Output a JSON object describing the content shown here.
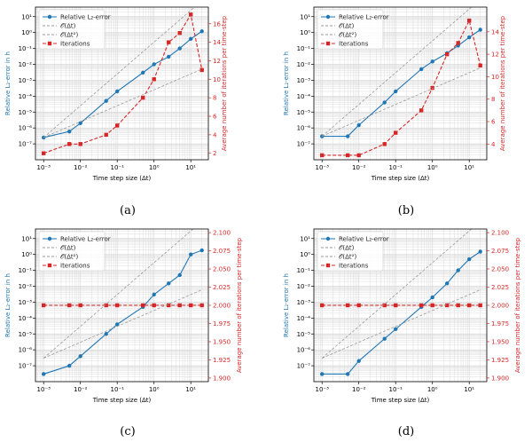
{
  "figure": {
    "panels": [
      "a",
      "b",
      "c",
      "d"
    ],
    "captions": [
      "(a)",
      "(b)",
      "(c)",
      "(d)"
    ]
  },
  "colors": {
    "error": "#1f77b4",
    "iterations": "#d62728",
    "ref": "#9a9a9a",
    "grid": "#d8d8d8"
  },
  "chart_data": [
    {
      "type": "line",
      "xlabel": "Time step size (Δt)",
      "ylabel": "Relative L₂-error in h",
      "y2label": "Average number of iterations per time-step",
      "xscale": "log",
      "yscale": "log",
      "xlim": [
        0.0006,
        30
      ],
      "ylim_exp": [
        -8,
        1.6
      ],
      "xticks": [
        "10⁻³",
        "10⁻²",
        "10⁻¹",
        "10⁰",
        "10¹"
      ],
      "yticks": [
        "10⁻⁷",
        "10⁻⁶",
        "10⁻⁵",
        "10⁻⁴",
        "10⁻³",
        "10⁻²",
        "10⁻¹",
        "10⁰",
        "10¹"
      ],
      "y2lim": [
        1.3,
        17.8
      ],
      "y2ticks": [
        "2",
        "4",
        "6",
        "8",
        "10",
        "12",
        "14",
        "16"
      ],
      "legend": [
        "Relative L₂-error",
        "𝒪(Δt)",
        "𝒪(Δt²)",
        "Iterations"
      ],
      "legend_position": "top-left",
      "grid": true,
      "x": [
        0.001,
        0.005,
        0.01,
        0.05,
        0.1,
        0.5,
        1,
        2.5,
        5,
        10,
        20
      ],
      "series": [
        {
          "name": "Relative L₂-error",
          "axis": "left",
          "values": [
            2.5e-07,
            6e-07,
            2e-06,
            5e-05,
            0.0002,
            0.003,
            0.01,
            0.03,
            0.1,
            0.4,
            1.2
          ]
        },
        {
          "name": "Iterations",
          "axis": "right",
          "values": [
            2,
            3,
            3,
            4,
            5,
            8,
            10,
            14,
            15,
            17,
            11
          ]
        },
        {
          "name": "𝒪(Δt)",
          "axis": "left",
          "ref": true,
          "points": [
            [
              0.001,
              2.5e-07
            ],
            [
              20,
              0.005
            ]
          ]
        },
        {
          "name": "𝒪(Δt²)",
          "axis": "left",
          "ref": true,
          "points": [
            [
              0.001,
              2.5e-07
            ],
            [
              20,
              100
            ]
          ]
        }
      ]
    },
    {
      "type": "line",
      "xlabel": "Time step size (Δt)",
      "ylabel": "Relative L₂-error in h",
      "y2label": "Average number of iterations per time-step",
      "xscale": "log",
      "yscale": "log",
      "xlim": [
        0.0006,
        30
      ],
      "ylim_exp": [
        -8,
        1.6
      ],
      "xticks": [
        "10⁻³",
        "10⁻²",
        "10⁻¹",
        "10⁰",
        "10¹"
      ],
      "yticks": [
        "10⁻⁷",
        "10⁻⁶",
        "10⁻⁵",
        "10⁻⁴",
        "10⁻³",
        "10⁻²",
        "10⁻¹",
        "10⁰",
        "10¹"
      ],
      "y2lim": [
        2.6,
        16.2
      ],
      "y2ticks": [
        "4",
        "6",
        "8",
        "10",
        "12",
        "14"
      ],
      "legend": [
        "Relative L₂-error",
        "𝒪(Δt)",
        "𝒪(Δt²)",
        "Iterations"
      ],
      "legend_position": "top-left",
      "grid": true,
      "x": [
        0.001,
        0.005,
        0.01,
        0.05,
        0.1,
        0.5,
        1,
        2.5,
        5,
        10,
        20
      ],
      "series": [
        {
          "name": "Relative L₂-error",
          "axis": "left",
          "values": [
            3e-07,
            3e-07,
            1.5e-06,
            4e-05,
            0.0002,
            0.005,
            0.015,
            0.05,
            0.15,
            0.5,
            1.5
          ]
        },
        {
          "name": "Iterations",
          "axis": "right",
          "values": [
            3,
            3,
            3,
            4,
            5,
            7,
            9,
            12,
            13,
            15,
            11
          ]
        },
        {
          "name": "𝒪(Δt)",
          "axis": "left",
          "ref": true,
          "points": [
            [
              0.001,
              3e-07
            ],
            [
              20,
              0.006
            ]
          ]
        },
        {
          "name": "𝒪(Δt²)",
          "axis": "left",
          "ref": true,
          "points": [
            [
              0.001,
              3e-07
            ],
            [
              20,
              120
            ]
          ]
        }
      ]
    },
    {
      "type": "line",
      "xlabel": "Time step size (Δt)",
      "ylabel": "Relative L₂-error in h",
      "y2label": "Average number of iterations per time-step",
      "xscale": "log",
      "yscale": "log",
      "xlim": [
        0.0006,
        30
      ],
      "ylim_exp": [
        -8,
        1.6
      ],
      "xticks": [
        "10⁻³",
        "10⁻²",
        "10⁻¹",
        "10⁰",
        "10¹"
      ],
      "yticks": [
        "10⁻⁷",
        "10⁻⁶",
        "10⁻⁵",
        "10⁻⁴",
        "10⁻³",
        "10⁻²",
        "10⁻¹",
        "10⁰",
        "10¹"
      ],
      "y2lim": [
        1.895,
        2.105
      ],
      "y2ticks": [
        "1.900",
        "1.925",
        "1.950",
        "1.975",
        "2.000",
        "2.025",
        "2.050",
        "2.075",
        "2.100"
      ],
      "legend": [
        "Relative L₂-error",
        "𝒪(Δt)",
        "𝒪(Δt²)",
        "Iterations"
      ],
      "legend_position": "top-left",
      "grid": true,
      "x": [
        0.001,
        0.005,
        0.01,
        0.05,
        0.1,
        0.5,
        1,
        2.5,
        5,
        10,
        20
      ],
      "series": [
        {
          "name": "Relative L₂-error",
          "axis": "left",
          "values": [
            3e-08,
            1e-07,
            4e-07,
            1e-05,
            4e-05,
            0.0005,
            0.003,
            0.015,
            0.05,
            1,
            1.8
          ]
        },
        {
          "name": "Iterations",
          "axis": "right",
          "values": [
            2,
            2,
            2,
            2,
            2,
            2,
            2,
            2,
            2,
            2,
            2
          ]
        },
        {
          "name": "𝒪(Δt)",
          "axis": "left",
          "ref": true,
          "points": [
            [
              0.001,
              3e-07
            ],
            [
              20,
              0.006
            ]
          ]
        },
        {
          "name": "𝒪(Δt²)",
          "axis": "left",
          "ref": true,
          "points": [
            [
              0.001,
              3e-07
            ],
            [
              20,
              120
            ]
          ]
        }
      ]
    },
    {
      "type": "line",
      "xlabel": "Time step size (Δt)",
      "ylabel": "Relative L₂-error in h",
      "y2label": "Average number of iterations per time-step",
      "xscale": "log",
      "yscale": "log",
      "xlim": [
        0.0006,
        30
      ],
      "ylim_exp": [
        -8,
        1.6
      ],
      "xticks": [
        "10⁻³",
        "10⁻²",
        "10⁻¹",
        "10⁰",
        "10¹"
      ],
      "yticks": [
        "10⁻⁷",
        "10⁻⁶",
        "10⁻⁵",
        "10⁻⁴",
        "10⁻³",
        "10⁻²",
        "10⁻¹",
        "10⁰",
        "10¹"
      ],
      "y2lim": [
        1.895,
        2.105
      ],
      "y2ticks": [
        "1.900",
        "1.925",
        "1.950",
        "1.975",
        "2.000",
        "2.025",
        "2.050",
        "2.075",
        "2.100"
      ],
      "legend": [
        "Relative L₂-error",
        "𝒪(Δt)",
        "𝒪(Δt²)",
        "Iterations"
      ],
      "legend_position": "top-left",
      "grid": true,
      "x": [
        0.001,
        0.005,
        0.01,
        0.05,
        0.1,
        0.5,
        1,
        2.5,
        5,
        10,
        20
      ],
      "series": [
        {
          "name": "Relative L₂-error",
          "axis": "left",
          "values": [
            3e-08,
            3e-08,
            2e-07,
            5e-06,
            2e-05,
            0.0005,
            0.002,
            0.015,
            0.1,
            0.5,
            1.5
          ]
        },
        {
          "name": "Iterations",
          "axis": "right",
          "values": [
            2,
            2,
            2,
            2,
            2,
            2,
            2,
            2,
            2,
            2,
            2
          ]
        },
        {
          "name": "𝒪(Δt)",
          "axis": "left",
          "ref": true,
          "points": [
            [
              0.001,
              3e-07
            ],
            [
              20,
              0.006
            ]
          ]
        },
        {
          "name": "𝒪(Δt²)",
          "axis": "left",
          "ref": true,
          "points": [
            [
              0.001,
              3e-07
            ],
            [
              20,
              120
            ]
          ]
        }
      ]
    }
  ]
}
